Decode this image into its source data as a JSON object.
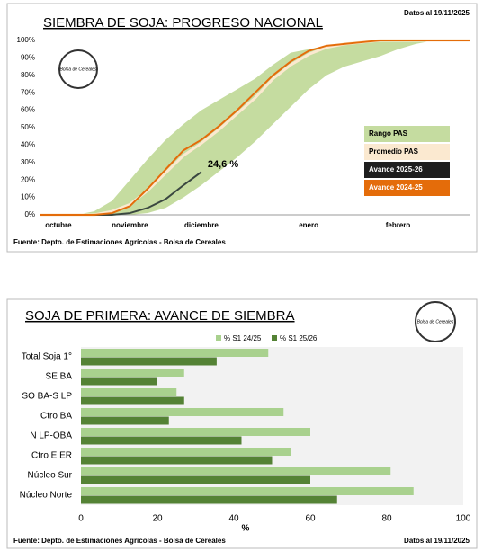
{
  "chart_data": [
    {
      "type": "line",
      "title": "SIEMBRA DE SOJA: PROGRESO NACIONAL",
      "date_note": "Datos al 19/11/2025",
      "source": "Fuente: Depto. de Estimaciones Agrícolas - Bolsa de Cereales",
      "logo_text": "Bolsa de Cereales",
      "annotation": "24,6 %",
      "categories": [
        null,
        "octubre",
        null,
        null,
        null,
        "noviembre",
        null,
        null,
        null,
        "diciembre",
        null,
        null,
        null,
        null,
        null,
        "enero",
        null,
        null,
        null,
        null,
        "febrero",
        null,
        null,
        null,
        null
      ],
      "ylim": [
        0,
        100
      ],
      "yticks": [
        {
          "value": 0,
          "label": "0%"
        },
        {
          "value": 10,
          "label": "10%"
        },
        {
          "value": 20,
          "label": "20%"
        },
        {
          "value": 30,
          "label": "30%"
        },
        {
          "value": 40,
          "label": "40%"
        },
        {
          "value": 50,
          "label": "50%"
        },
        {
          "value": 60,
          "label": "60%"
        },
        {
          "value": 70,
          "label": "70%"
        },
        {
          "value": 80,
          "label": "80%"
        },
        {
          "value": 90,
          "label": "90%"
        },
        {
          "value": 100,
          "label": "100%"
        }
      ],
      "band": {
        "name": "Rango PAS",
        "color": "#c5dca0",
        "lower": [
          0,
          0,
          0,
          0,
          0,
          0,
          1,
          4,
          10,
          17,
          25,
          33,
          42,
          52,
          62,
          72,
          80,
          85,
          88,
          91,
          95,
          98,
          100,
          100,
          100
        ],
        "upper": [
          0,
          0,
          0,
          2,
          8,
          20,
          32,
          43,
          52,
          60,
          66,
          72,
          78,
          86,
          93,
          95,
          97,
          98,
          99,
          100,
          100,
          100,
          100,
          100,
          100
        ]
      },
      "series": [
        {
          "name": "Promedio PAS",
          "color": "#fbe9d0",
          "values": [
            0,
            0,
            0,
            0,
            2,
            6,
            14,
            24,
            34,
            41,
            49,
            58,
            67,
            78,
            86,
            92,
            96,
            98,
            99,
            100,
            100,
            100,
            100,
            100,
            100
          ]
        },
        {
          "name": "Avance 2025-26",
          "color": "#1e1e1e",
          "values": [
            0,
            0,
            0,
            0,
            0,
            1,
            4,
            9,
            17,
            24.6,
            null,
            null,
            null,
            null,
            null,
            null,
            null,
            null,
            null,
            null,
            null,
            null,
            null,
            null,
            null
          ]
        },
        {
          "name": "Avance 2024-25",
          "color": "#e46c0a",
          "values": [
            0,
            0,
            0,
            0,
            1,
            5,
            15,
            26,
            37,
            43,
            51,
            60,
            70,
            80,
            88,
            94,
            97,
            98,
            99,
            100,
            100,
            100,
            100,
            100,
            100
          ]
        }
      ]
    },
    {
      "type": "bar",
      "orientation": "horizontal",
      "title": "SOJA DE PRIMERA: AVANCE DE SIEMBRA",
      "date_note": "Datos al 19/11/2025",
      "source": "Fuente: Depto. de Estimaciones Agrícolas - Bolsa de Cereales",
      "logo_text": "Bolsa de Cereales",
      "x_label": "%",
      "categories": [
        "Total Soja 1°",
        "SE BA",
        "SO BA-S LP",
        "Ctro BA",
        "N LP-OBA",
        "Ctro E ER",
        "Núcleo Sur",
        "Núcleo Norte"
      ],
      "xlim": [
        0,
        100
      ],
      "xticks": [
        0,
        20,
        40,
        60,
        80,
        100
      ],
      "series": [
        {
          "name": "% S1 24/25",
          "color": "#a9d18e",
          "values": [
            49,
            27,
            25,
            53,
            60,
            55,
            81,
            87
          ]
        },
        {
          "name": "% S1 25/26",
          "color": "#548235",
          "values": [
            35.5,
            20,
            27,
            23,
            42,
            50,
            60,
            67
          ]
        }
      ]
    }
  ]
}
